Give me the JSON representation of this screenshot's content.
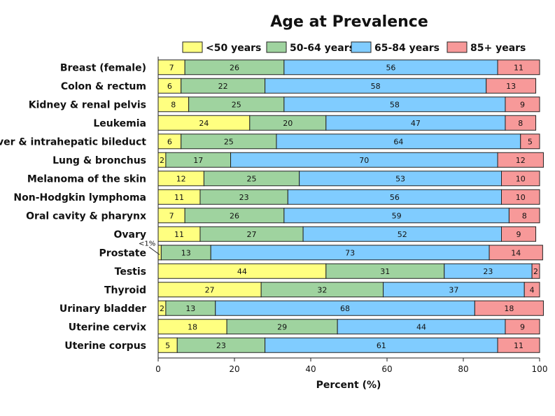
{
  "chart_data": {
    "type": "bar",
    "orientation": "horizontal",
    "stacked": true,
    "title": "Age at Prevalence",
    "xlabel": "Percent (%)",
    "ylabel": "",
    "xlim": [
      0,
      100
    ],
    "xticks": [
      "0",
      "20",
      "40",
      "60",
      "80",
      "100"
    ],
    "legend_position": "top",
    "grid": false,
    "categories": [
      "Breast (female)",
      "Colon & rectum",
      "Kidney & renal pelvis",
      "Leukemia",
      "Liver & intrahepatic bileduct",
      "Lung & bronchus",
      "Melanoma of the skin",
      "Non-Hodgkin lymphoma",
      "Oral cavity & pharynx",
      "Ovary",
      "Prostate",
      "Testis",
      "Thyroid",
      "Urinary bladder",
      "Uterine cervix",
      "Uterine corpus"
    ],
    "series": [
      {
        "name": "<50 years",
        "color": "#ffff80",
        "values": [
          7,
          6,
          8,
          24,
          6,
          2,
          12,
          11,
          7,
          11,
          0.8,
          44,
          27,
          2,
          18,
          5
        ]
      },
      {
        "name": "50-64 years",
        "color": "#9fd39f",
        "values": [
          26,
          22,
          25,
          20,
          25,
          17,
          25,
          23,
          26,
          27,
          13,
          31,
          32,
          13,
          29,
          23
        ]
      },
      {
        "name": "65-84 years",
        "color": "#80ccff",
        "values": [
          56,
          58,
          58,
          47,
          64,
          70,
          53,
          56,
          59,
          52,
          73,
          23,
          37,
          68,
          44,
          61
        ]
      },
      {
        "name": "85+ years",
        "color": "#f79999",
        "values": [
          11,
          13,
          9,
          8,
          5,
          12,
          10,
          10,
          8,
          9,
          14,
          2,
          4,
          18,
          9,
          11
        ]
      }
    ],
    "bar_labels": [
      [
        "7",
        "26",
        "56",
        "11"
      ],
      [
        "6",
        "22",
        "58",
        "13"
      ],
      [
        "8",
        "25",
        "58",
        "9"
      ],
      [
        "24",
        "20",
        "47",
        "8"
      ],
      [
        "6",
        "25",
        "64",
        "5"
      ],
      [
        "2",
        "17",
        "70",
        "12"
      ],
      [
        "12",
        "25",
        "53",
        "10"
      ],
      [
        "11",
        "23",
        "56",
        "10"
      ],
      [
        "7",
        "26",
        "59",
        "8"
      ],
      [
        "11",
        "27",
        "52",
        "9"
      ],
      [
        "",
        "13",
        "73",
        "14"
      ],
      [
        "44",
        "31",
        "23",
        "2"
      ],
      [
        "27",
        "32",
        "37",
        "4"
      ],
      [
        "2",
        "13",
        "68",
        "18"
      ],
      [
        "18",
        "29",
        "44",
        "9"
      ],
      [
        "5",
        "23",
        "61",
        "11"
      ]
    ],
    "annotations": [
      {
        "text": "<1%",
        "category": "Prostate",
        "series": "<50 years"
      }
    ]
  }
}
